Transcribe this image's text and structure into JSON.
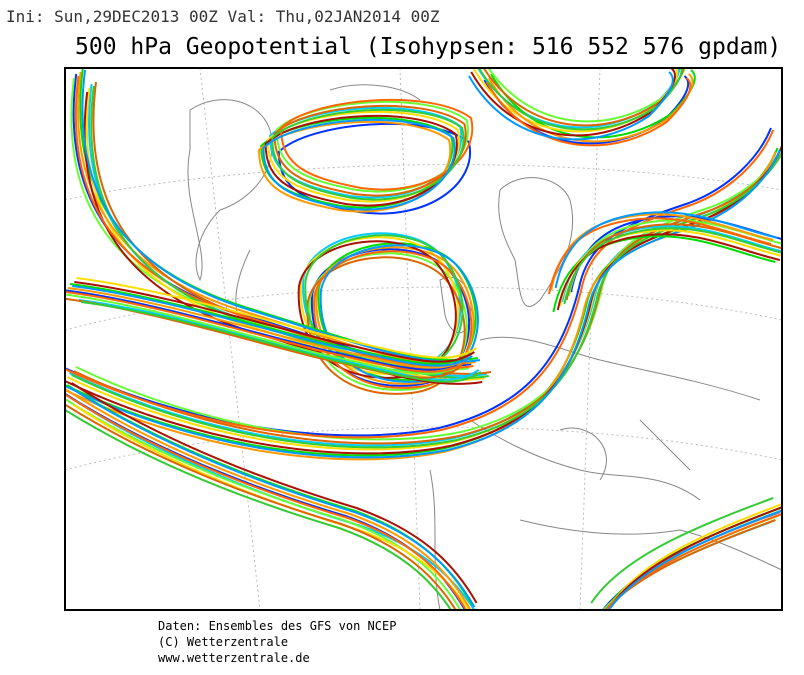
{
  "header": {
    "init_line": "Ini: Sun,29DEC2013 00Z Val: Thu,02JAN2014 00Z",
    "title": "500 hPa Geopotential (Isohypsen: 516 552 576 gpdam)"
  },
  "footer": {
    "lines": [
      "Daten: Ensembles des GFS von NCEP",
      "(C) Wetterzentrale",
      "www.wetterzentrale.de"
    ]
  }
}
